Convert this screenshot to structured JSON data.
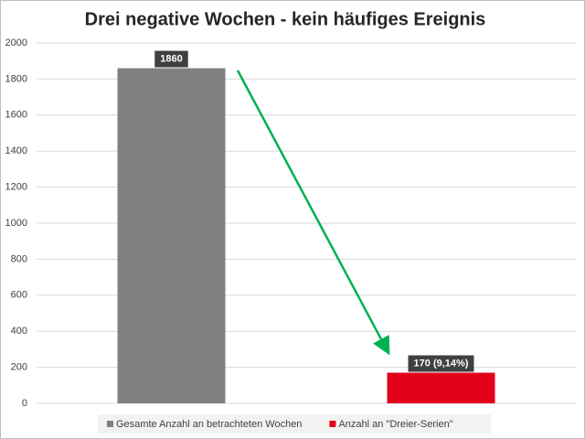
{
  "chart_data": {
    "type": "bar",
    "title": "Drei negative Wochen - kein häufiges Ereignis",
    "categories": [
      null,
      null
    ],
    "series": [
      {
        "name": "Gesamte Anzahl an betrachteten Wochen",
        "color": "#808080",
        "values": [
          1860,
          null
        ]
      },
      {
        "name": "Anzahl an \"Dreier-Serien\"",
        "color": "#e3001b",
        "values": [
          null,
          170
        ],
        "value_labels": [
          null,
          "170 (9,14%)"
        ]
      }
    ],
    "ylim": [
      0,
      2000
    ],
    "yticks": [
      0,
      200,
      400,
      600,
      800,
      1000,
      1200,
      1400,
      1600,
      1800,
      2000
    ],
    "grid": true,
    "legend": "bottom"
  }
}
